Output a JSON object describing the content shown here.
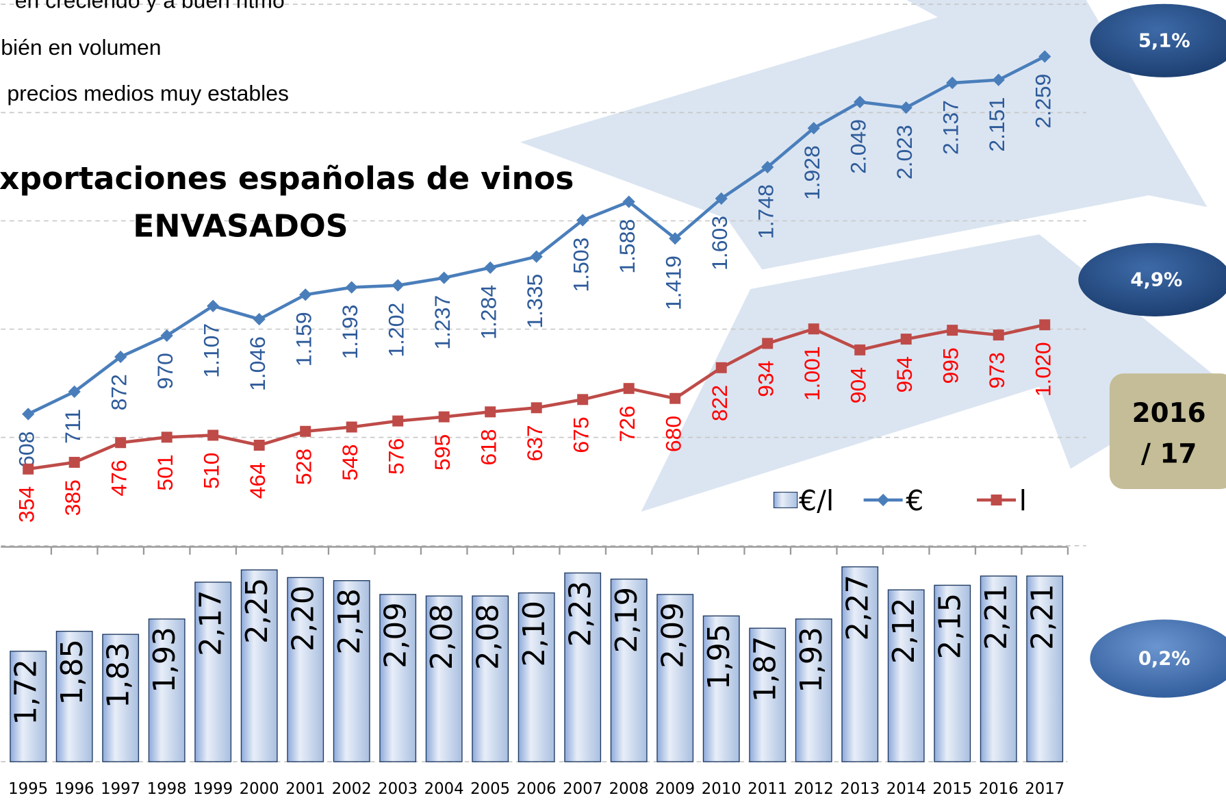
{
  "chart_data": {
    "type": "combo",
    "title": "xportaciones españolas de vinos",
    "subtitle": "ENVASADOS",
    "notes": [
      "en creciendo y a buen ritmo",
      "bién en volumen",
      "precios medios muy estables"
    ],
    "annotations": [
      "5,1%",
      "4,9%",
      "0,2%"
    ],
    "period": [
      "2016",
      "/ 17"
    ],
    "categories": [
      "1995",
      "1996",
      "1997",
      "1998",
      "1999",
      "2000",
      "2001",
      "2002",
      "2003",
      "2004",
      "2005",
      "2006",
      "2007",
      "2008",
      "2009",
      "2010",
      "2011",
      "2012",
      "2013",
      "2014",
      "2015",
      "2016",
      "2017"
    ],
    "ylim": [
      0,
      2500
    ],
    "yticks": [
      0,
      500,
      1000,
      1500,
      2000,
      2500
    ],
    "grid": true,
    "y2lim": [
      1,
      2.4
    ],
    "series": [
      {
        "name": "€/l",
        "type": "bar",
        "axis": "y2",
        "color": "#b9cde5",
        "values": [
          1.72,
          1.85,
          1.83,
          1.93,
          2.17,
          2.25,
          2.2,
          2.18,
          2.09,
          2.08,
          2.08,
          2.1,
          2.23,
          2.19,
          2.09,
          1.95,
          1.87,
          1.93,
          2.27,
          2.12,
          2.15,
          2.21,
          2.21
        ],
        "value_labels": [
          "1,72",
          "1,85",
          "1,83",
          "1,93",
          "2,17",
          "2,25",
          "2,20",
          "2,18",
          "2,09",
          "2,08",
          "2,08",
          "2,10",
          "2,23",
          "2,19",
          "2,09",
          "1,95",
          "1,87",
          "1,93",
          "2,27",
          "2,12",
          "2,15",
          "2,21",
          "2,21"
        ]
      },
      {
        "name": "€",
        "type": "line",
        "marker": "diamond",
        "color": "#4a7ebb",
        "label_color": "#2e5b9a",
        "values": [
          608,
          711,
          872,
          970,
          1107,
          1046,
          1159,
          1193,
          1202,
          1237,
          1284,
          1335,
          1503,
          1588,
          1419,
          1603,
          1748,
          1928,
          2049,
          2023,
          2137,
          2151,
          2259
        ],
        "value_labels": [
          "608",
          "711",
          "872",
          "970",
          "1.107",
          "1.046",
          "1.159",
          "1.193",
          "1.202",
          "1.237",
          "1.284",
          "1.335",
          "1.503",
          "1.588",
          "1.419",
          "1.603",
          "1.748",
          "1.928",
          "2.049",
          "2.023",
          "2.137",
          "2.151",
          "2.259"
        ]
      },
      {
        "name": "l",
        "type": "line",
        "marker": "square",
        "color": "#be4b48",
        "label_color": "#ff0000",
        "values": [
          354,
          385,
          476,
          501,
          510,
          464,
          528,
          548,
          576,
          595,
          618,
          637,
          675,
          726,
          680,
          822,
          934,
          1001,
          904,
          954,
          995,
          973,
          1020
        ],
        "value_labels": [
          "354",
          "385",
          "476",
          "501",
          "510",
          "464",
          "528",
          "548",
          "576",
          "595",
          "618",
          "637",
          "675",
          "726",
          "680",
          "822",
          "934",
          "1.001",
          "904",
          "954",
          "995",
          "973",
          "1.020"
        ]
      }
    ]
  }
}
